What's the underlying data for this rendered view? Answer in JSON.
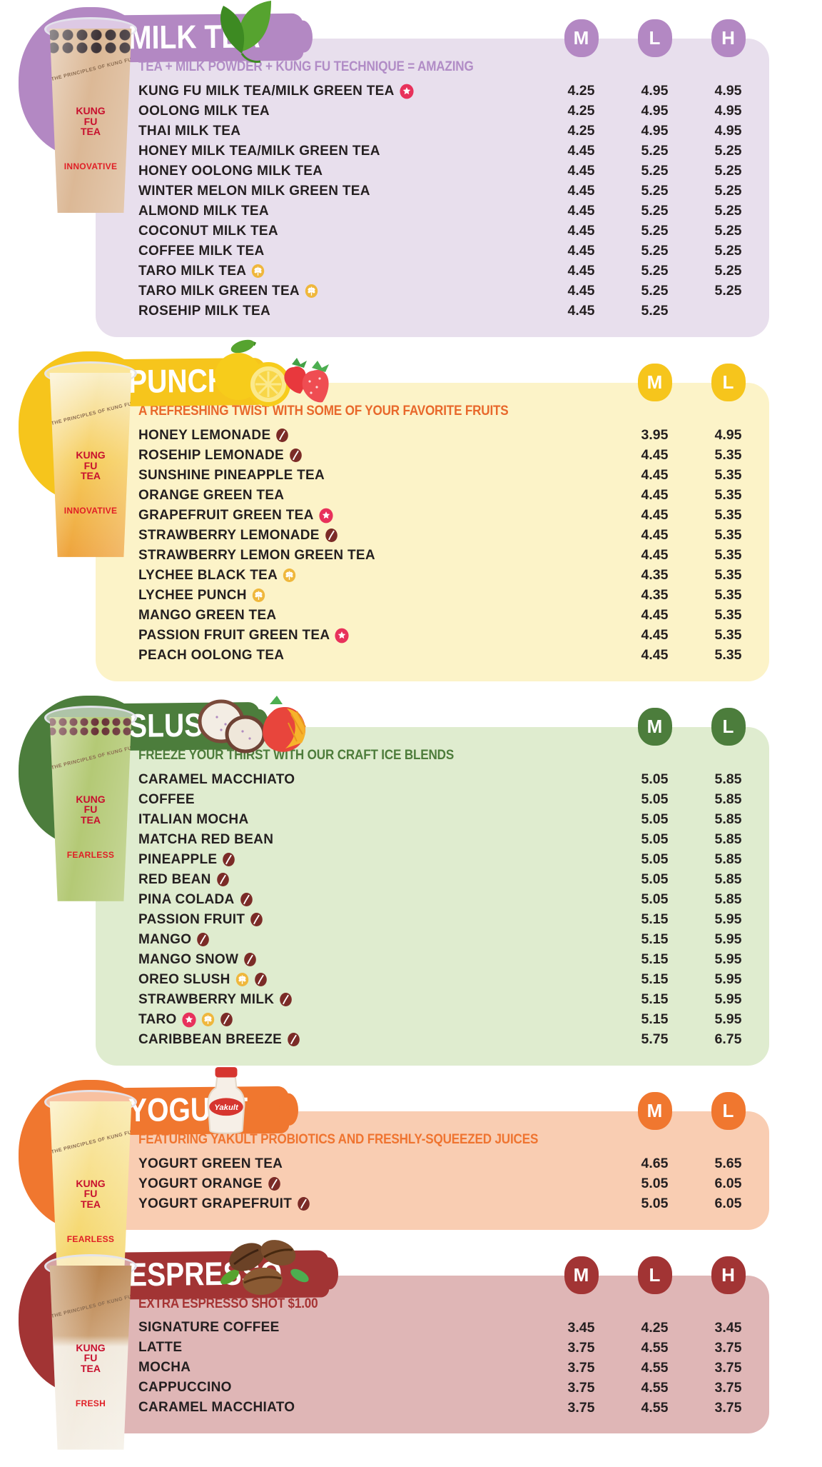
{
  "icon_colors": {
    "star": "#E8315B",
    "gluten": "#EFB73C",
    "caffeine_free": "#7B2B27"
  },
  "sections": [
    {
      "id": "milk-tea",
      "title": "MILK TEA",
      "tagline": "TEA + MILK POWDER + KUNG FU TECHNIQUE = AMAZING",
      "sizes": [
        "M",
        "L",
        "H"
      ],
      "decoration": "tea-leaves",
      "cup": {
        "brand": "KUNG FU TEA",
        "arc_text": "THE PRINCIPLES OF KUNG FU TEA",
        "principle": "INNOVATIVE"
      },
      "colors": {
        "panel": "#E8DFED",
        "accent": "#B388C3",
        "tagline": "#B18CC6",
        "liquid": "#D9B38E"
      },
      "items": [
        {
          "name": "KUNG FU MILK TEA/MILK GREEN TEA",
          "icons": [
            "star"
          ],
          "prices": [
            "4.25",
            "4.95",
            "4.95"
          ]
        },
        {
          "name": "OOLONG MILK TEA",
          "icons": [],
          "prices": [
            "4.25",
            "4.95",
            "4.95"
          ]
        },
        {
          "name": "THAI MILK TEA",
          "icons": [],
          "prices": [
            "4.25",
            "4.95",
            "4.95"
          ]
        },
        {
          "name": "HONEY MILK TEA/MILK GREEN TEA",
          "icons": [],
          "prices": [
            "4.45",
            "5.25",
            "5.25"
          ]
        },
        {
          "name": "HONEY OOLONG MILK TEA",
          "icons": [],
          "prices": [
            "4.45",
            "5.25",
            "5.25"
          ]
        },
        {
          "name": "WINTER MELON MILK GREEN TEA",
          "icons": [],
          "prices": [
            "4.45",
            "5.25",
            "5.25"
          ]
        },
        {
          "name": "ALMOND MILK TEA",
          "icons": [],
          "prices": [
            "4.45",
            "5.25",
            "5.25"
          ]
        },
        {
          "name": "COCONUT MILK TEA",
          "icons": [],
          "prices": [
            "4.45",
            "5.25",
            "5.25"
          ]
        },
        {
          "name": "COFFEE MILK TEA",
          "icons": [],
          "prices": [
            "4.45",
            "5.25",
            "5.25"
          ]
        },
        {
          "name": "TARO MILK TEA",
          "icons": [
            "gluten"
          ],
          "prices": [
            "4.45",
            "5.25",
            "5.25"
          ]
        },
        {
          "name": "TARO MILK GREEN TEA",
          "icons": [
            "gluten"
          ],
          "prices": [
            "4.45",
            "5.25",
            "5.25"
          ]
        },
        {
          "name": "ROSEHIP MILK TEA",
          "icons": [],
          "prices": [
            "4.45",
            "5.25",
            ""
          ]
        }
      ]
    },
    {
      "id": "punch",
      "title": "PUNCH",
      "tagline": "A REFRESHING TWIST WITH SOME OF YOUR FAVORITE FRUITS",
      "sizes": [
        "M",
        "L"
      ],
      "decoration": "lemon-strawberry",
      "cup": {
        "brand": "KUNG FU TEA",
        "arc_text": "THE PRINCIPLES OF KUNG FU TEA",
        "principle": "INNOVATIVE"
      },
      "colors": {
        "panel": "#FCF3C8",
        "accent": "#F6C51C",
        "tagline": "#E8682B",
        "liquid": "#F5C94F"
      },
      "items": [
        {
          "name": "HONEY LEMONADE",
          "icons": [
            "caffeine_free"
          ],
          "prices": [
            "3.95",
            "4.95"
          ]
        },
        {
          "name": "ROSEHIP LEMONADE",
          "icons": [
            "caffeine_free"
          ],
          "prices": [
            "4.45",
            "5.35"
          ]
        },
        {
          "name": "SUNSHINE PINEAPPLE TEA",
          "icons": [],
          "prices": [
            "4.45",
            "5.35"
          ]
        },
        {
          "name": "ORANGE GREEN TEA",
          "icons": [],
          "prices": [
            "4.45",
            "5.35"
          ]
        },
        {
          "name": "GRAPEFRUIT GREEN TEA",
          "icons": [
            "star"
          ],
          "prices": [
            "4.45",
            "5.35"
          ]
        },
        {
          "name": "STRAWBERRY LEMONADE",
          "icons": [
            "caffeine_free"
          ],
          "prices": [
            "4.45",
            "5.35"
          ]
        },
        {
          "name": "STRAWBERRY LEMON GREEN TEA",
          "icons": [],
          "prices": [
            "4.45",
            "5.35"
          ]
        },
        {
          "name": "LYCHEE BLACK TEA",
          "icons": [
            "gluten"
          ],
          "prices": [
            "4.35",
            "5.35"
          ]
        },
        {
          "name": "LYCHEE PUNCH",
          "icons": [
            "gluten"
          ],
          "prices": [
            "4.35",
            "5.35"
          ]
        },
        {
          "name": "MANGO GREEN TEA",
          "icons": [],
          "prices": [
            "4.45",
            "5.35"
          ]
        },
        {
          "name": "PASSION FRUIT GREEN TEA",
          "icons": [
            "star"
          ],
          "prices": [
            "4.45",
            "5.35"
          ]
        },
        {
          "name": "PEACH OOLONG TEA",
          "icons": [],
          "prices": [
            "4.45",
            "5.35"
          ]
        }
      ]
    },
    {
      "id": "slush",
      "title": "SLUSH",
      "tagline": "FREEZE YOUR THIRST WITH OUR CRAFT ICE BLENDS",
      "sizes": [
        "M",
        "L"
      ],
      "decoration": "taro-mango",
      "cup": {
        "brand": "KUNG FU TEA",
        "arc_text": "THE PRINCIPLES OF KUNG FU TEA",
        "principle": "FEARLESS"
      },
      "colors": {
        "panel": "#DFECCF",
        "accent": "#4C7D3C",
        "tagline": "#4D7C3B",
        "liquid": "#AEC56B"
      },
      "items": [
        {
          "name": "CARAMEL MACCHIATO",
          "icons": [],
          "prices": [
            "5.05",
            "5.85"
          ]
        },
        {
          "name": "COFFEE",
          "icons": [],
          "prices": [
            "5.05",
            "5.85"
          ]
        },
        {
          "name": "ITALIAN MOCHA",
          "icons": [],
          "prices": [
            "5.05",
            "5.85"
          ]
        },
        {
          "name": "MATCHA RED BEAN",
          "icons": [],
          "prices": [
            "5.05",
            "5.85"
          ]
        },
        {
          "name": "PINEAPPLE",
          "icons": [
            "caffeine_free"
          ],
          "prices": [
            "5.05",
            "5.85"
          ]
        },
        {
          "name": "RED BEAN",
          "icons": [
            "caffeine_free"
          ],
          "prices": [
            "5.05",
            "5.85"
          ]
        },
        {
          "name": "PINA COLADA",
          "icons": [
            "caffeine_free"
          ],
          "prices": [
            "5.05",
            "5.85"
          ]
        },
        {
          "name": "PASSION FRUIT",
          "icons": [
            "caffeine_free"
          ],
          "prices": [
            "5.15",
            "5.95"
          ]
        },
        {
          "name": "MANGO",
          "icons": [
            "caffeine_free"
          ],
          "prices": [
            "5.15",
            "5.95"
          ]
        },
        {
          "name": "MANGO SNOW",
          "icons": [
            "caffeine_free"
          ],
          "prices": [
            "5.15",
            "5.95"
          ]
        },
        {
          "name": "OREO SLUSH",
          "icons": [
            "gluten",
            "caffeine_free"
          ],
          "prices": [
            "5.15",
            "5.95"
          ]
        },
        {
          "name": "STRAWBERRY MILK",
          "icons": [
            "caffeine_free"
          ],
          "prices": [
            "5.15",
            "5.95"
          ]
        },
        {
          "name": "TARO",
          "icons": [
            "star",
            "gluten",
            "caffeine_free"
          ],
          "prices": [
            "5.15",
            "5.95"
          ]
        },
        {
          "name": "CARIBBEAN BREEZE",
          "icons": [
            "caffeine_free"
          ],
          "prices": [
            "5.75",
            "6.75"
          ]
        }
      ]
    },
    {
      "id": "yogurt",
      "title": "YOGURT",
      "tagline": "FEATURING YAKULT PROBIOTICS AND FRESHLY-SQUEEZED JUICES",
      "sizes": [
        "M",
        "L"
      ],
      "decoration": "yakult-bottle",
      "decoration_label": "Yakult",
      "cup": {
        "brand": "KUNG FU TEA",
        "arc_text": "THE PRINCIPLES OF KUNG FU TEA",
        "principle": "FEARLESS"
      },
      "colors": {
        "panel": "#F9CDB2",
        "accent": "#F0772F",
        "tagline": "#EF7430",
        "liquid": "#F3CE4D"
      },
      "items": [
        {
          "name": "YOGURT GREEN TEA",
          "icons": [],
          "prices": [
            "4.65",
            "5.65"
          ]
        },
        {
          "name": "YOGURT ORANGE",
          "icons": [
            "caffeine_free"
          ],
          "prices": [
            "5.05",
            "6.05"
          ]
        },
        {
          "name": "YOGURT GRAPEFRUIT",
          "icons": [
            "caffeine_free"
          ],
          "prices": [
            "5.05",
            "6.05"
          ]
        }
      ]
    },
    {
      "id": "espresso",
      "title": "ESPRESSO",
      "tagline": "EXTRA ESPRESSO SHOT $1.00",
      "sizes": [
        "M",
        "L",
        "H"
      ],
      "decoration": "coffee-beans",
      "cup": {
        "brand": "KUNG FU TEA",
        "arc_text": "THE PRINCIPLES OF KUNG FU TEA",
        "principle": "FRESH"
      },
      "colors": {
        "panel": "#DFB6B6",
        "accent": "#A23434",
        "tagline": "#A63434",
        "liquid": "#C89A6B"
      },
      "items": [
        {
          "name": "SIGNATURE COFFEE",
          "icons": [],
          "prices": [
            "3.45",
            "4.25",
            "3.45"
          ]
        },
        {
          "name": "LATTE",
          "icons": [],
          "prices": [
            "3.75",
            "4.55",
            "3.75"
          ]
        },
        {
          "name": "MOCHA",
          "icons": [],
          "prices": [
            "3.75",
            "4.55",
            "3.75"
          ]
        },
        {
          "name": "CAPPUCCINO",
          "icons": [],
          "prices": [
            "3.75",
            "4.55",
            "3.75"
          ]
        },
        {
          "name": "CARAMEL MACCHIATO",
          "icons": [],
          "prices": [
            "3.75",
            "4.55",
            "3.75"
          ]
        }
      ]
    }
  ]
}
